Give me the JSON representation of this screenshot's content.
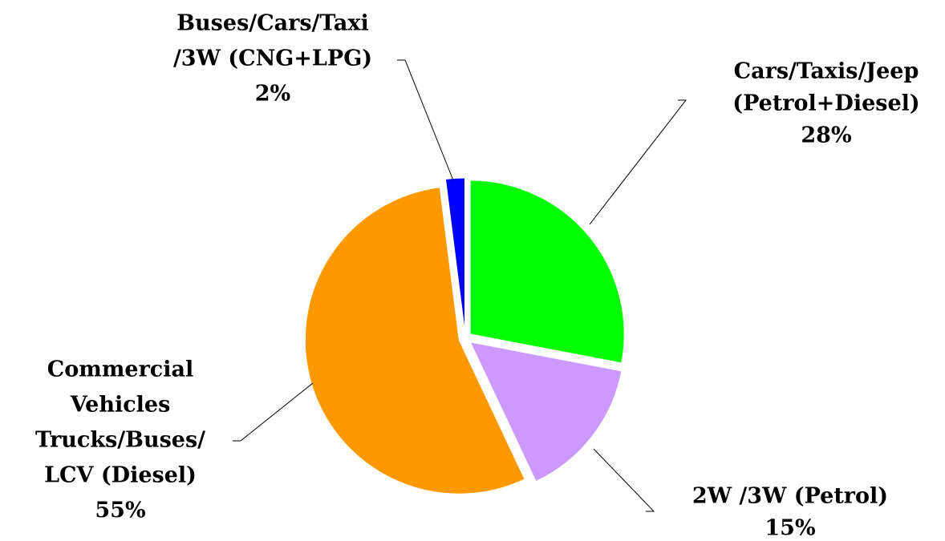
{
  "chart_data": {
    "type": "pie",
    "categories": [
      [
        "Cars/Taxis/Jeep",
        "(Petrol+Diesel)"
      ],
      [
        "2W /3W (Petrol)"
      ],
      [
        "Commercial",
        "Vehicles",
        "Trucks/Buses/",
        "LCV (Diesel)"
      ],
      [
        "Buses/Cars/Taxi",
        "/3W (CNG+LPG)"
      ]
    ],
    "values": [
      28,
      15,
      55,
      2
    ],
    "value_labels": [
      "28%",
      "15%",
      "55%",
      "2%"
    ],
    "colors": [
      "#00ff00",
      "#cc99ff",
      "#ff9900",
      "#0000ff"
    ]
  }
}
